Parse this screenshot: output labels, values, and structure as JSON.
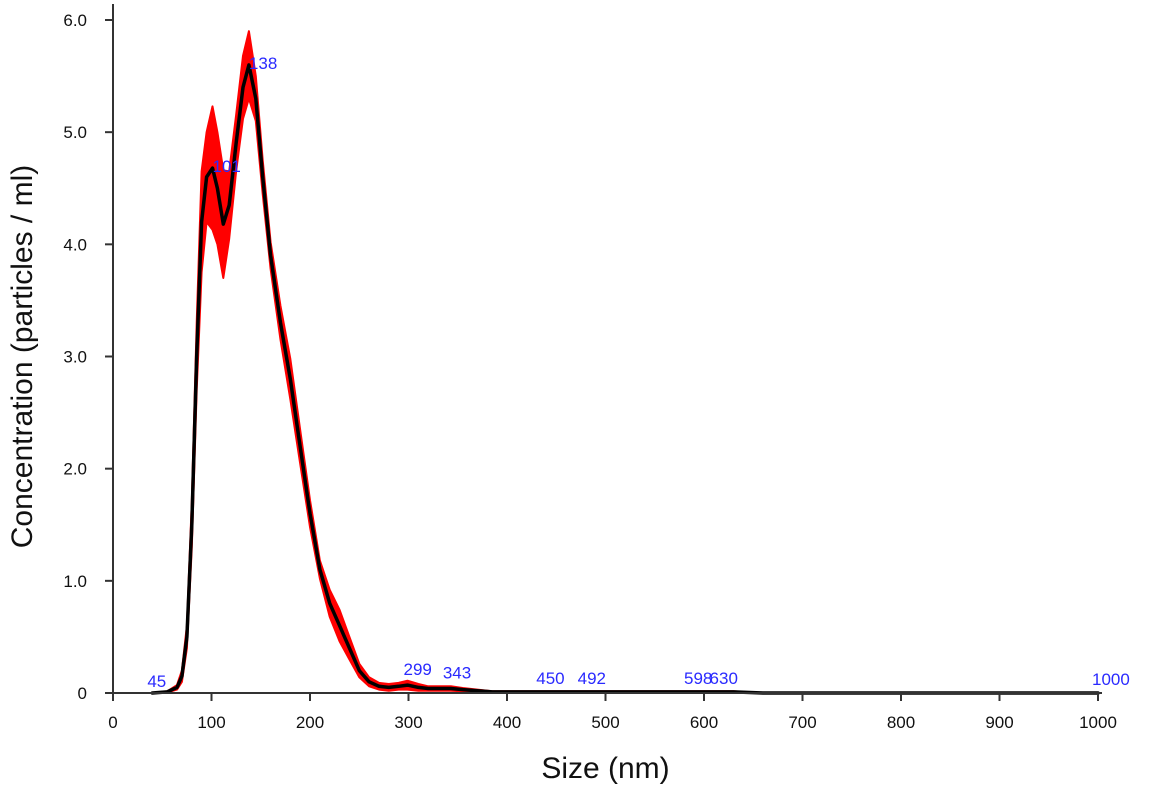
{
  "chart_data": {
    "type": "line",
    "xlabel": "Size (nm)",
    "ylabel": "Concentration (particles / ml)",
    "xlim": [
      0,
      1000
    ],
    "ylim": [
      0,
      6.0
    ],
    "x_ticks": [
      0,
      100,
      200,
      300,
      400,
      500,
      600,
      700,
      800,
      900,
      1000
    ],
    "x_tick_labels": [
      "0",
      "100",
      "200",
      "300",
      "400",
      "500",
      "600",
      "700",
      "800",
      "900",
      "1000"
    ],
    "y_ticks": [
      0,
      1.0,
      2.0,
      3.0,
      4.0,
      5.0,
      6.0
    ],
    "y_tick_labels": [
      "0",
      "1.0",
      "2.0",
      "3.0",
      "4.0",
      "5.0",
      "6.0"
    ],
    "grid": false,
    "legend": "none",
    "colors": {
      "mean_line": "#000000",
      "error_band": "#ff0000",
      "peak_labels": "#2a2aff",
      "axis": "#333333"
    },
    "series": [
      {
        "x": [
          40,
          55,
          65,
          70,
          75,
          80,
          85,
          90,
          95,
          101,
          106,
          112,
          118,
          125,
          132,
          138,
          145,
          152,
          160,
          170,
          180,
          190,
          200,
          210,
          220,
          230,
          240,
          250,
          260,
          270,
          280,
          290,
          299,
          310,
          320,
          330,
          343,
          355,
          370,
          385,
          400,
          420,
          450,
          470,
          492,
          520,
          560,
          598,
          630,
          660,
          700,
          800,
          900,
          1000
        ],
        "y": [
          0,
          0.01,
          0.05,
          0.15,
          0.5,
          1.5,
          3.0,
          4.2,
          4.6,
          4.68,
          4.5,
          4.18,
          4.35,
          4.9,
          5.4,
          5.6,
          5.3,
          4.6,
          3.9,
          3.3,
          2.8,
          2.2,
          1.6,
          1.1,
          0.8,
          0.6,
          0.4,
          0.2,
          0.1,
          0.06,
          0.05,
          0.06,
          0.07,
          0.05,
          0.04,
          0.04,
          0.04,
          0.03,
          0.02,
          0.01,
          0.01,
          0.01,
          0.01,
          0.01,
          0.01,
          0.01,
          0.01,
          0.01,
          0.01,
          0.0,
          0.0,
          0.0,
          0.0,
          0.0
        ],
        "err": [
          0,
          0.005,
          0.02,
          0.05,
          0.1,
          0.2,
          0.3,
          0.45,
          0.4,
          0.55,
          0.5,
          0.48,
          0.3,
          0.25,
          0.28,
          0.3,
          0.2,
          0.15,
          0.12,
          0.15,
          0.18,
          0.15,
          0.12,
          0.08,
          0.12,
          0.14,
          0.1,
          0.06,
          0.04,
          0.03,
          0.03,
          0.03,
          0.04,
          0.03,
          0.02,
          0.02,
          0.02,
          0.015,
          0.01,
          0.005,
          0.005,
          0.005,
          0.005,
          0.005,
          0.005,
          0.005,
          0.005,
          0.005,
          0.005,
          0,
          0,
          0,
          0,
          0
        ]
      }
    ],
    "peak_annotations": [
      {
        "label": "45",
        "x": 45,
        "y": 0.0
      },
      {
        "label": "101",
        "x": 101,
        "y": 4.68
      },
      {
        "label": "138",
        "x": 138,
        "y": 5.6
      },
      {
        "label": "299",
        "x": 299,
        "y": 0.07
      },
      {
        "label": "343",
        "x": 343,
        "y": 0.04
      },
      {
        "label": "450",
        "x": 450,
        "y": 0.01
      },
      {
        "label": "492",
        "x": 492,
        "y": 0.01
      },
      {
        "label": "598",
        "x": 598,
        "y": 0.01
      },
      {
        "label": "630",
        "x": 630,
        "y": 0.01
      },
      {
        "label": "1000",
        "x": 1000,
        "y": 0.0
      }
    ]
  }
}
